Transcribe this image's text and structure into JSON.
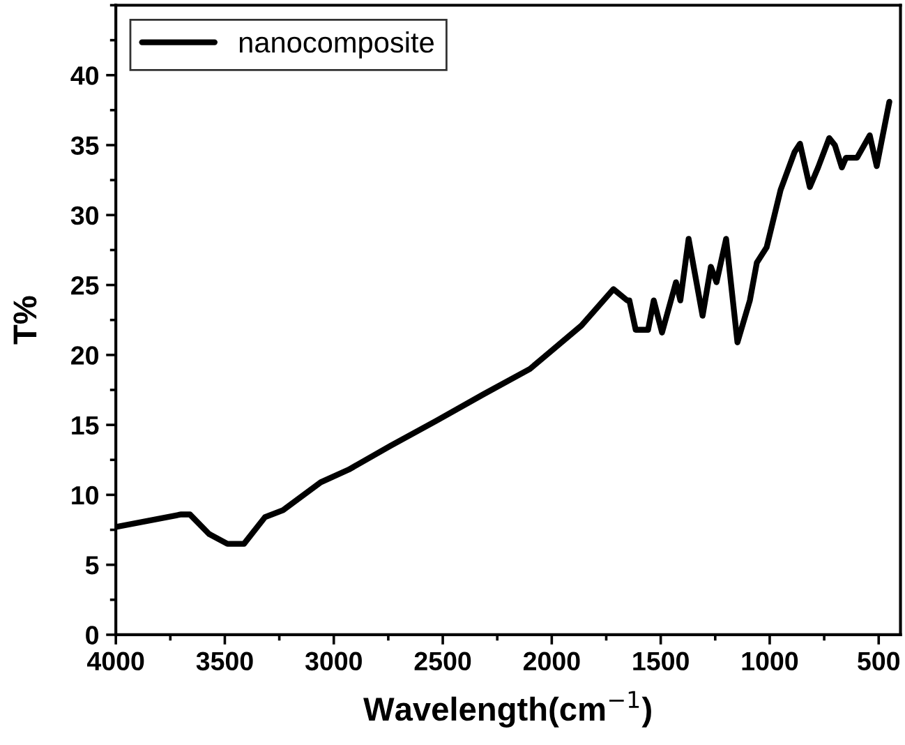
{
  "chart_data": {
    "type": "line",
    "xlabel": "Wavelength(cm$^{−1}$)",
    "ylabel": "T%",
    "xlim": [
      4000,
      400
    ],
    "xticks": [
      4000,
      3500,
      3000,
      2500,
      2000,
      1500,
      1000,
      500
    ],
    "ylim": [
      0,
      45
    ],
    "yticks": [
      0,
      5,
      10,
      15,
      20,
      25,
      30,
      35,
      40
    ],
    "legend": "top left",
    "grid": false,
    "line_style": "solid",
    "marker": "none",
    "series": [
      {
        "name": "nanocomposite",
        "color": "#000000",
        "x": [
          4000,
          3700,
          3660,
          3572,
          3488,
          3412,
          3316,
          3233,
          3060,
          2932,
          2740,
          2529,
          2312,
          2100,
          1864,
          1717,
          1654,
          1644,
          1615,
          1558,
          1532,
          1494,
          1430,
          1410,
          1372,
          1308,
          1270,
          1244,
          1200,
          1148,
          1091,
          1059,
          1014,
          950,
          886,
          861,
          816,
          778,
          727,
          701,
          669,
          650,
          599,
          541,
          509,
          451
        ],
        "values": [
          7.7,
          8.6,
          8.6,
          7.2,
          6.5,
          6.5,
          8.4,
          8.9,
          10.9,
          11.8,
          13.5,
          15.3,
          17.2,
          19.0,
          22.1,
          24.7,
          23.9,
          23.9,
          21.8,
          21.8,
          23.9,
          21.6,
          25.2,
          23.9,
          28.3,
          22.8,
          26.3,
          25.2,
          28.3,
          20.9,
          23.9,
          26.6,
          27.7,
          31.8,
          34.5,
          35.1,
          32.0,
          33.4,
          35.5,
          35.0,
          33.4,
          34.1,
          34.1,
          35.7,
          33.5,
          38.1
        ]
      }
    ]
  }
}
